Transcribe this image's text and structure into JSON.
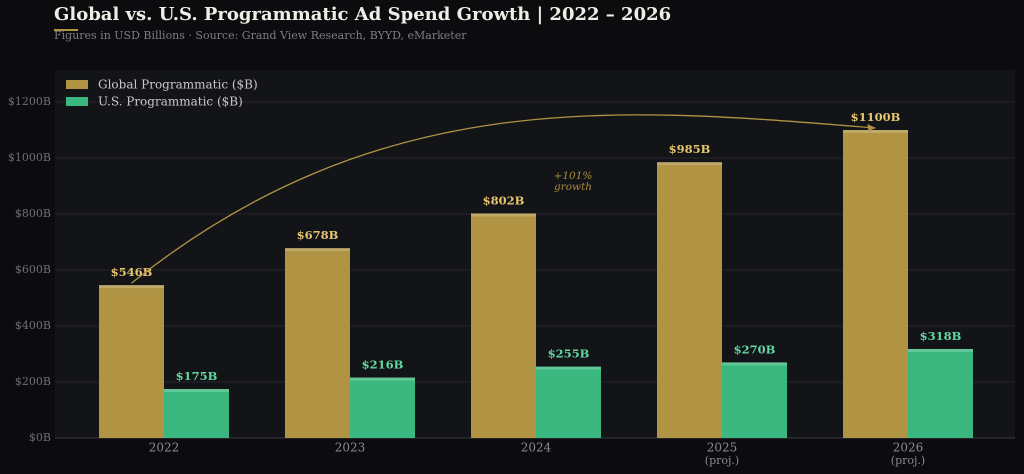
{
  "chart_data": {
    "type": "bar",
    "title": "Global vs. U.S. Programmatic Ad Spend Growth  |  2022 – 2026",
    "subtitle": "Figures in USD Billions  ·  Source: Grand View Research, BYYD, eMarketer",
    "categories": [
      "2022",
      "2023",
      "2024",
      "2025",
      "2026"
    ],
    "category_notes": [
      null,
      null,
      null,
      "(proj.)",
      "(proj.)"
    ],
    "series": [
      {
        "name": "Global Programmatic ($B)",
        "color": "#b09444",
        "label_color": "#e8c670",
        "values": [
          546,
          678,
          802,
          985,
          1100
        ],
        "value_labels": [
          "$546B",
          "$678B",
          "$802B",
          "$985B",
          "$1100B"
        ]
      },
      {
        "name": "U.S. Programmatic ($B)",
        "color": "#3bb87f",
        "label_color": "#62d8a2",
        "values": [
          175,
          216,
          255,
          270,
          318
        ],
        "value_labels": [
          "$175B",
          "$216B",
          "$255B",
          "$270B",
          "$318B"
        ]
      }
    ],
    "annotation": [
      "+101%",
      "growth"
    ],
    "ylim": [
      0,
      1300
    ],
    "yticks": [
      {
        "value": 0,
        "label": "$0B"
      },
      {
        "value": 200,
        "label": "$200B"
      },
      {
        "value": 400,
        "label": "$400B"
      },
      {
        "value": 600,
        "label": "$600B"
      },
      {
        "value": 800,
        "label": "$800B"
      },
      {
        "value": 1000,
        "label": "$1000B"
      },
      {
        "value": 1200,
        "label": "$1200B"
      }
    ],
    "grid": true,
    "legend": "upper left"
  }
}
